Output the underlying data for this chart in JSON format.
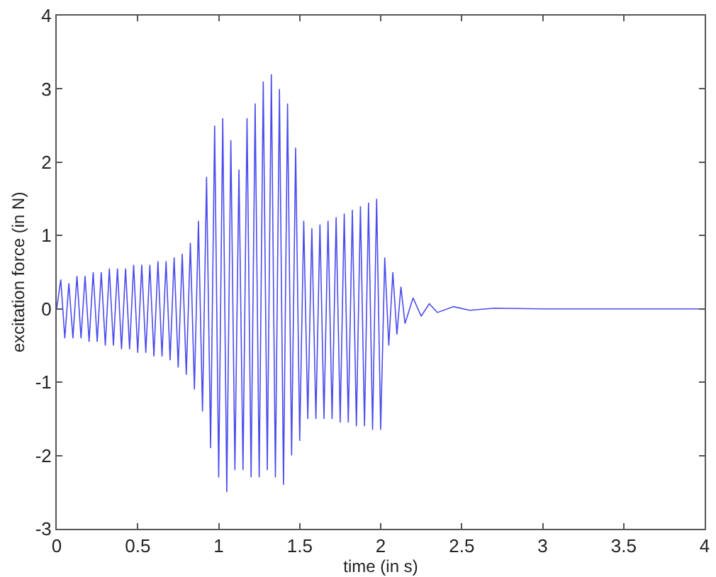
{
  "chart_data": {
    "type": "line",
    "xlabel": "time (in s)",
    "ylabel": "excitation force (in N)",
    "xlim": [
      0,
      4
    ],
    "xticks": [
      0,
      0.5,
      1,
      1.5,
      2,
      2.5,
      3,
      3.5,
      4
    ],
    "ylim": [
      -3,
      4
    ],
    "yticks": [
      -3,
      -2,
      -1,
      0,
      1,
      2,
      3,
      4
    ],
    "marker": "none",
    "line_style": "solid",
    "series": [
      {
        "color": "#4b4bf0",
        "x": [
          0,
          0.025,
          0.05,
          0.075,
          0.1,
          0.125,
          0.15,
          0.175,
          0.2,
          0.225,
          0.25,
          0.275,
          0.3,
          0.325,
          0.35,
          0.375,
          0.4,
          0.425,
          0.45,
          0.475,
          0.5,
          0.525,
          0.55,
          0.575,
          0.6,
          0.625,
          0.65,
          0.675,
          0.7,
          0.725,
          0.75,
          0.775,
          0.8,
          0.825,
          0.85,
          0.875,
          0.9,
          0.925,
          0.95,
          0.975,
          1.0,
          1.025,
          1.05,
          1.075,
          1.1,
          1.125,
          1.15,
          1.175,
          1.2,
          1.225,
          1.25,
          1.275,
          1.3,
          1.325,
          1.35,
          1.375,
          1.4,
          1.425,
          1.45,
          1.475,
          1.5,
          1.525,
          1.55,
          1.575,
          1.6,
          1.625,
          1.65,
          1.675,
          1.7,
          1.725,
          1.75,
          1.775,
          1.8,
          1.825,
          1.85,
          1.875,
          1.9,
          1.925,
          1.95,
          1.975,
          2.0,
          2.025,
          2.05,
          2.075,
          2.1,
          2.125,
          2.15,
          2.2,
          2.25,
          2.3,
          2.35,
          2.45,
          2.55,
          2.7,
          3,
          4
        ],
        "values": [
          0,
          0.4,
          -0.4,
          0.35,
          -0.4,
          0.45,
          -0.4,
          0.45,
          -0.45,
          0.5,
          -0.45,
          0.5,
          -0.5,
          0.55,
          -0.5,
          0.55,
          -0.55,
          0.55,
          -0.55,
          0.6,
          -0.6,
          0.6,
          -0.6,
          0.6,
          -0.65,
          0.65,
          -0.65,
          0.65,
          -0.7,
          0.7,
          -0.8,
          0.75,
          -0.9,
          0.9,
          -1.1,
          1.2,
          -1.4,
          1.8,
          -1.9,
          2.5,
          -2.3,
          2.6,
          -2.5,
          2.3,
          -2.2,
          1.9,
          -2.2,
          2.6,
          -2.3,
          2.8,
          -2.3,
          3.1,
          -2.2,
          3.2,
          -2.3,
          3.0,
          -2.4,
          2.8,
          -2.0,
          2.2,
          -1.8,
          1.2,
          -1.5,
          1.1,
          -1.5,
          1.15,
          -1.5,
          1.2,
          -1.5,
          1.25,
          -1.55,
          1.3,
          -1.55,
          1.35,
          -1.6,
          1.4,
          -1.6,
          1.45,
          -1.65,
          1.5,
          -1.65,
          0.7,
          -0.5,
          0.5,
          -0.35,
          0.3,
          -0.2,
          0.15,
          -0.1,
          0.07,
          -0.05,
          0.03,
          -0.02,
          0.01,
          0,
          0
        ]
      }
    ]
  }
}
